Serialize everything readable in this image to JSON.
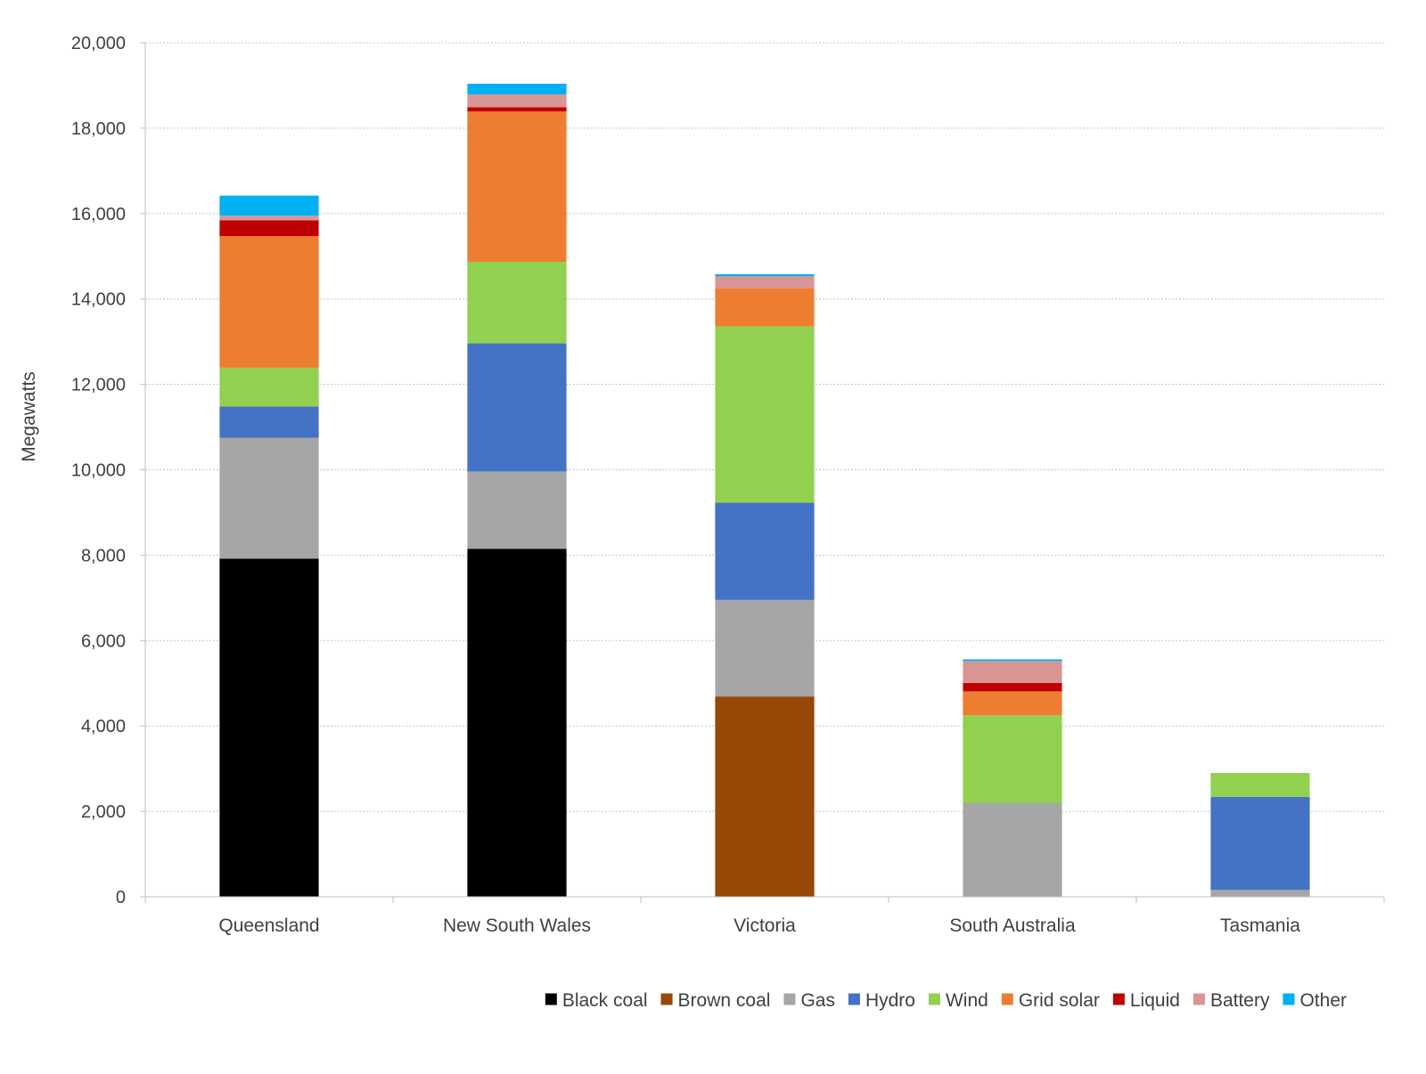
{
  "chart_data": {
    "type": "bar",
    "stacked": true,
    "title": "",
    "xlabel": "",
    "ylabel": "Megawatts",
    "ylim": [
      0,
      20000
    ],
    "yticks": [
      0,
      2000,
      4000,
      6000,
      8000,
      10000,
      12000,
      14000,
      16000,
      18000,
      20000
    ],
    "ytick_labels": [
      "0",
      "2,000",
      "4,000",
      "6,000",
      "8,000",
      "10,000",
      "12,000",
      "14,000",
      "16,000",
      "18,000",
      "20,000"
    ],
    "grid": true,
    "legend_position": "bottom-right",
    "categories": [
      "Queensland",
      "New South Wales",
      "Victoria",
      "South Australia",
      "Tasmania"
    ],
    "series": [
      {
        "name": "Black coal",
        "color": "#000000",
        "values": [
          7920,
          8150,
          0,
          0,
          0
        ]
      },
      {
        "name": "Brown coal",
        "color": "#974706",
        "values": [
          0,
          0,
          4690,
          0,
          0
        ]
      },
      {
        "name": "Gas",
        "color": "#a6a6a6",
        "values": [
          2830,
          1810,
          2260,
          2200,
          160
        ]
      },
      {
        "name": "Hydro",
        "color": "#4472c4",
        "values": [
          730,
          3000,
          2280,
          0,
          2180
        ]
      },
      {
        "name": "Wind",
        "color": "#92d050",
        "values": [
          910,
          1910,
          4130,
          2050,
          560
        ]
      },
      {
        "name": "Grid solar",
        "color": "#ed7d31",
        "values": [
          3080,
          3520,
          890,
          560,
          0
        ]
      },
      {
        "name": "Liquid",
        "color": "#c00000",
        "values": [
          370,
          100,
          0,
          200,
          0
        ]
      },
      {
        "name": "Battery",
        "color": "#d99594",
        "values": [
          110,
          300,
          280,
          510,
          0
        ]
      },
      {
        "name": "Other",
        "color": "#00b0f0",
        "values": [
          470,
          250,
          50,
          40,
          0
        ]
      }
    ]
  }
}
